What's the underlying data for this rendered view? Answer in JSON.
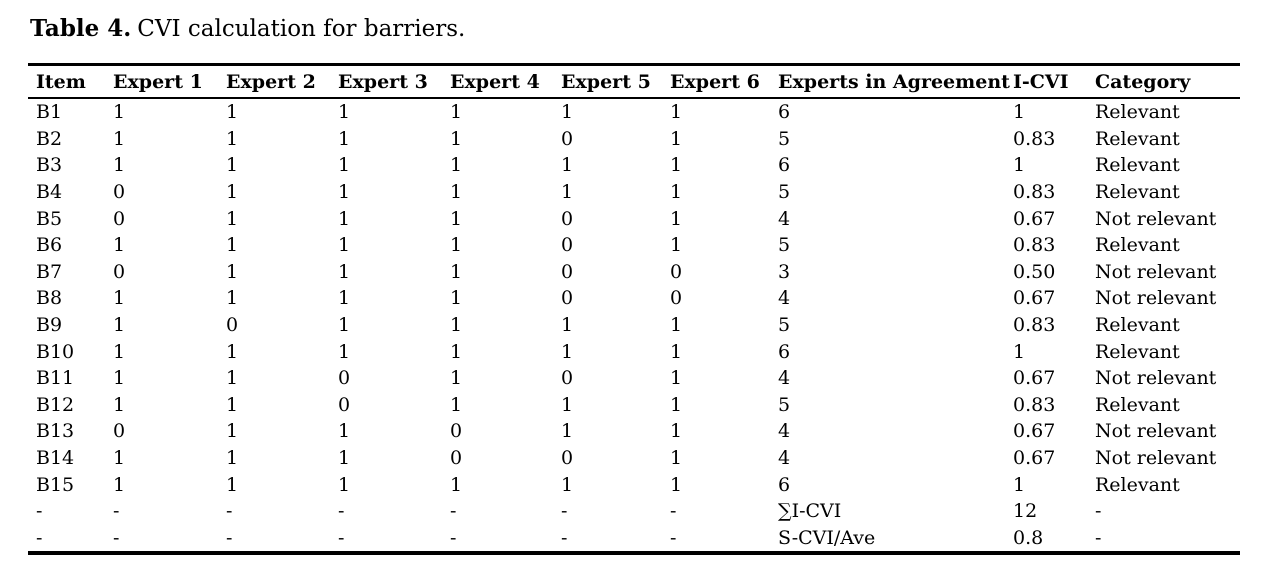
{
  "caption": {
    "label": "Table 4.",
    "text": "CVI calculation for barriers."
  },
  "table": {
    "columns": [
      {
        "key": "item",
        "label": "Item"
      },
      {
        "key": "expert-1",
        "label": "Expert 1"
      },
      {
        "key": "expert-2",
        "label": "Expert 2"
      },
      {
        "key": "expert-3",
        "label": "Expert 3"
      },
      {
        "key": "expert-4",
        "label": "Expert 4"
      },
      {
        "key": "expert-5",
        "label": "Expert 5"
      },
      {
        "key": "expert-6",
        "label": "Expert 6"
      },
      {
        "key": "experts-in-agreement",
        "label": "Experts in Agreement"
      },
      {
        "key": "i-cvi",
        "label": "I-CVI"
      },
      {
        "key": "category",
        "label": "Category"
      }
    ],
    "rows": [
      [
        "B1",
        "1",
        "1",
        "1",
        "1",
        "1",
        "1",
        "6",
        "1",
        "Relevant"
      ],
      [
        "B2",
        "1",
        "1",
        "1",
        "1",
        "0",
        "1",
        "5",
        "0.83",
        "Relevant"
      ],
      [
        "B3",
        "1",
        "1",
        "1",
        "1",
        "1",
        "1",
        "6",
        "1",
        "Relevant"
      ],
      [
        "B4",
        "0",
        "1",
        "1",
        "1",
        "1",
        "1",
        "5",
        "0.83",
        "Relevant"
      ],
      [
        "B5",
        "0",
        "1",
        "1",
        "1",
        "0",
        "1",
        "4",
        "0.67",
        "Not relevant"
      ],
      [
        "B6",
        "1",
        "1",
        "1",
        "1",
        "0",
        "1",
        "5",
        "0.83",
        "Relevant"
      ],
      [
        "B7",
        "0",
        "1",
        "1",
        "1",
        "0",
        "0",
        "3",
        "0.50",
        "Not relevant"
      ],
      [
        "B8",
        "1",
        "1",
        "1",
        "1",
        "0",
        "0",
        "4",
        "0.67",
        "Not relevant"
      ],
      [
        "B9",
        "1",
        "0",
        "1",
        "1",
        "1",
        "1",
        "5",
        "0.83",
        "Relevant"
      ],
      [
        "B10",
        "1",
        "1",
        "1",
        "1",
        "1",
        "1",
        "6",
        "1",
        "Relevant"
      ],
      [
        "B11",
        "1",
        "1",
        "0",
        "1",
        "0",
        "1",
        "4",
        "0.67",
        "Not relevant"
      ],
      [
        "B12",
        "1",
        "1",
        "0",
        "1",
        "1",
        "1",
        "5",
        "0.83",
        "Relevant"
      ],
      [
        "B13",
        "0",
        "1",
        "1",
        "0",
        "1",
        "1",
        "4",
        "0.67",
        "Not relevant"
      ],
      [
        "B14",
        "1",
        "1",
        "1",
        "0",
        "0",
        "1",
        "4",
        "0.67",
        "Not relevant"
      ],
      [
        "B15",
        "1",
        "1",
        "1",
        "1",
        "1",
        "1",
        "6",
        "1",
        "Relevant"
      ],
      [
        "-",
        "-",
        "-",
        "-",
        "-",
        "-",
        "-",
        "∑I-CVI",
        "12",
        "-"
      ],
      [
        "-",
        "-",
        "-",
        "-",
        "-",
        "-",
        "-",
        "S-CVI/Ave",
        "0.8",
        "-"
      ]
    ]
  }
}
